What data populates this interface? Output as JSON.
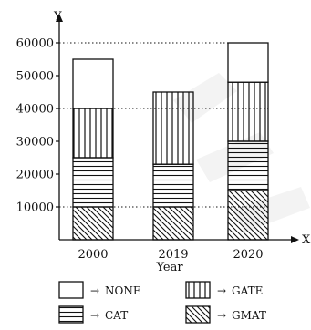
{
  "chart_data": {
    "type": "bar",
    "stacked": true,
    "categories": [
      "2000",
      "2019",
      "2020"
    ],
    "series": [
      {
        "name": "GMAT",
        "pattern": "diagonal-hatch",
        "values": [
          10000,
          10000,
          15000
        ]
      },
      {
        "name": "CAT",
        "pattern": "horizontal-lines",
        "values": [
          15000,
          13000,
          15000
        ]
      },
      {
        "name": "GATE",
        "pattern": "vertical-lines",
        "values": [
          15000,
          22000,
          18000
        ]
      },
      {
        "name": "NONE",
        "pattern": "blank",
        "values": [
          15000,
          0,
          12000
        ]
      }
    ],
    "xlabel": "Year",
    "ylabel": "Y",
    "x_axis_letter": "X",
    "yticks": [
      10000,
      20000,
      30000,
      40000,
      50000,
      60000
    ],
    "ylim": [
      0,
      60000
    ],
    "grid": false,
    "reference_lines": [
      10000,
      40000,
      60000
    ],
    "legend_placement": "bottom",
    "legend_arrow": "→",
    "colors": {
      "stroke": "#111111",
      "watermark": "#e8e8e8"
    }
  }
}
